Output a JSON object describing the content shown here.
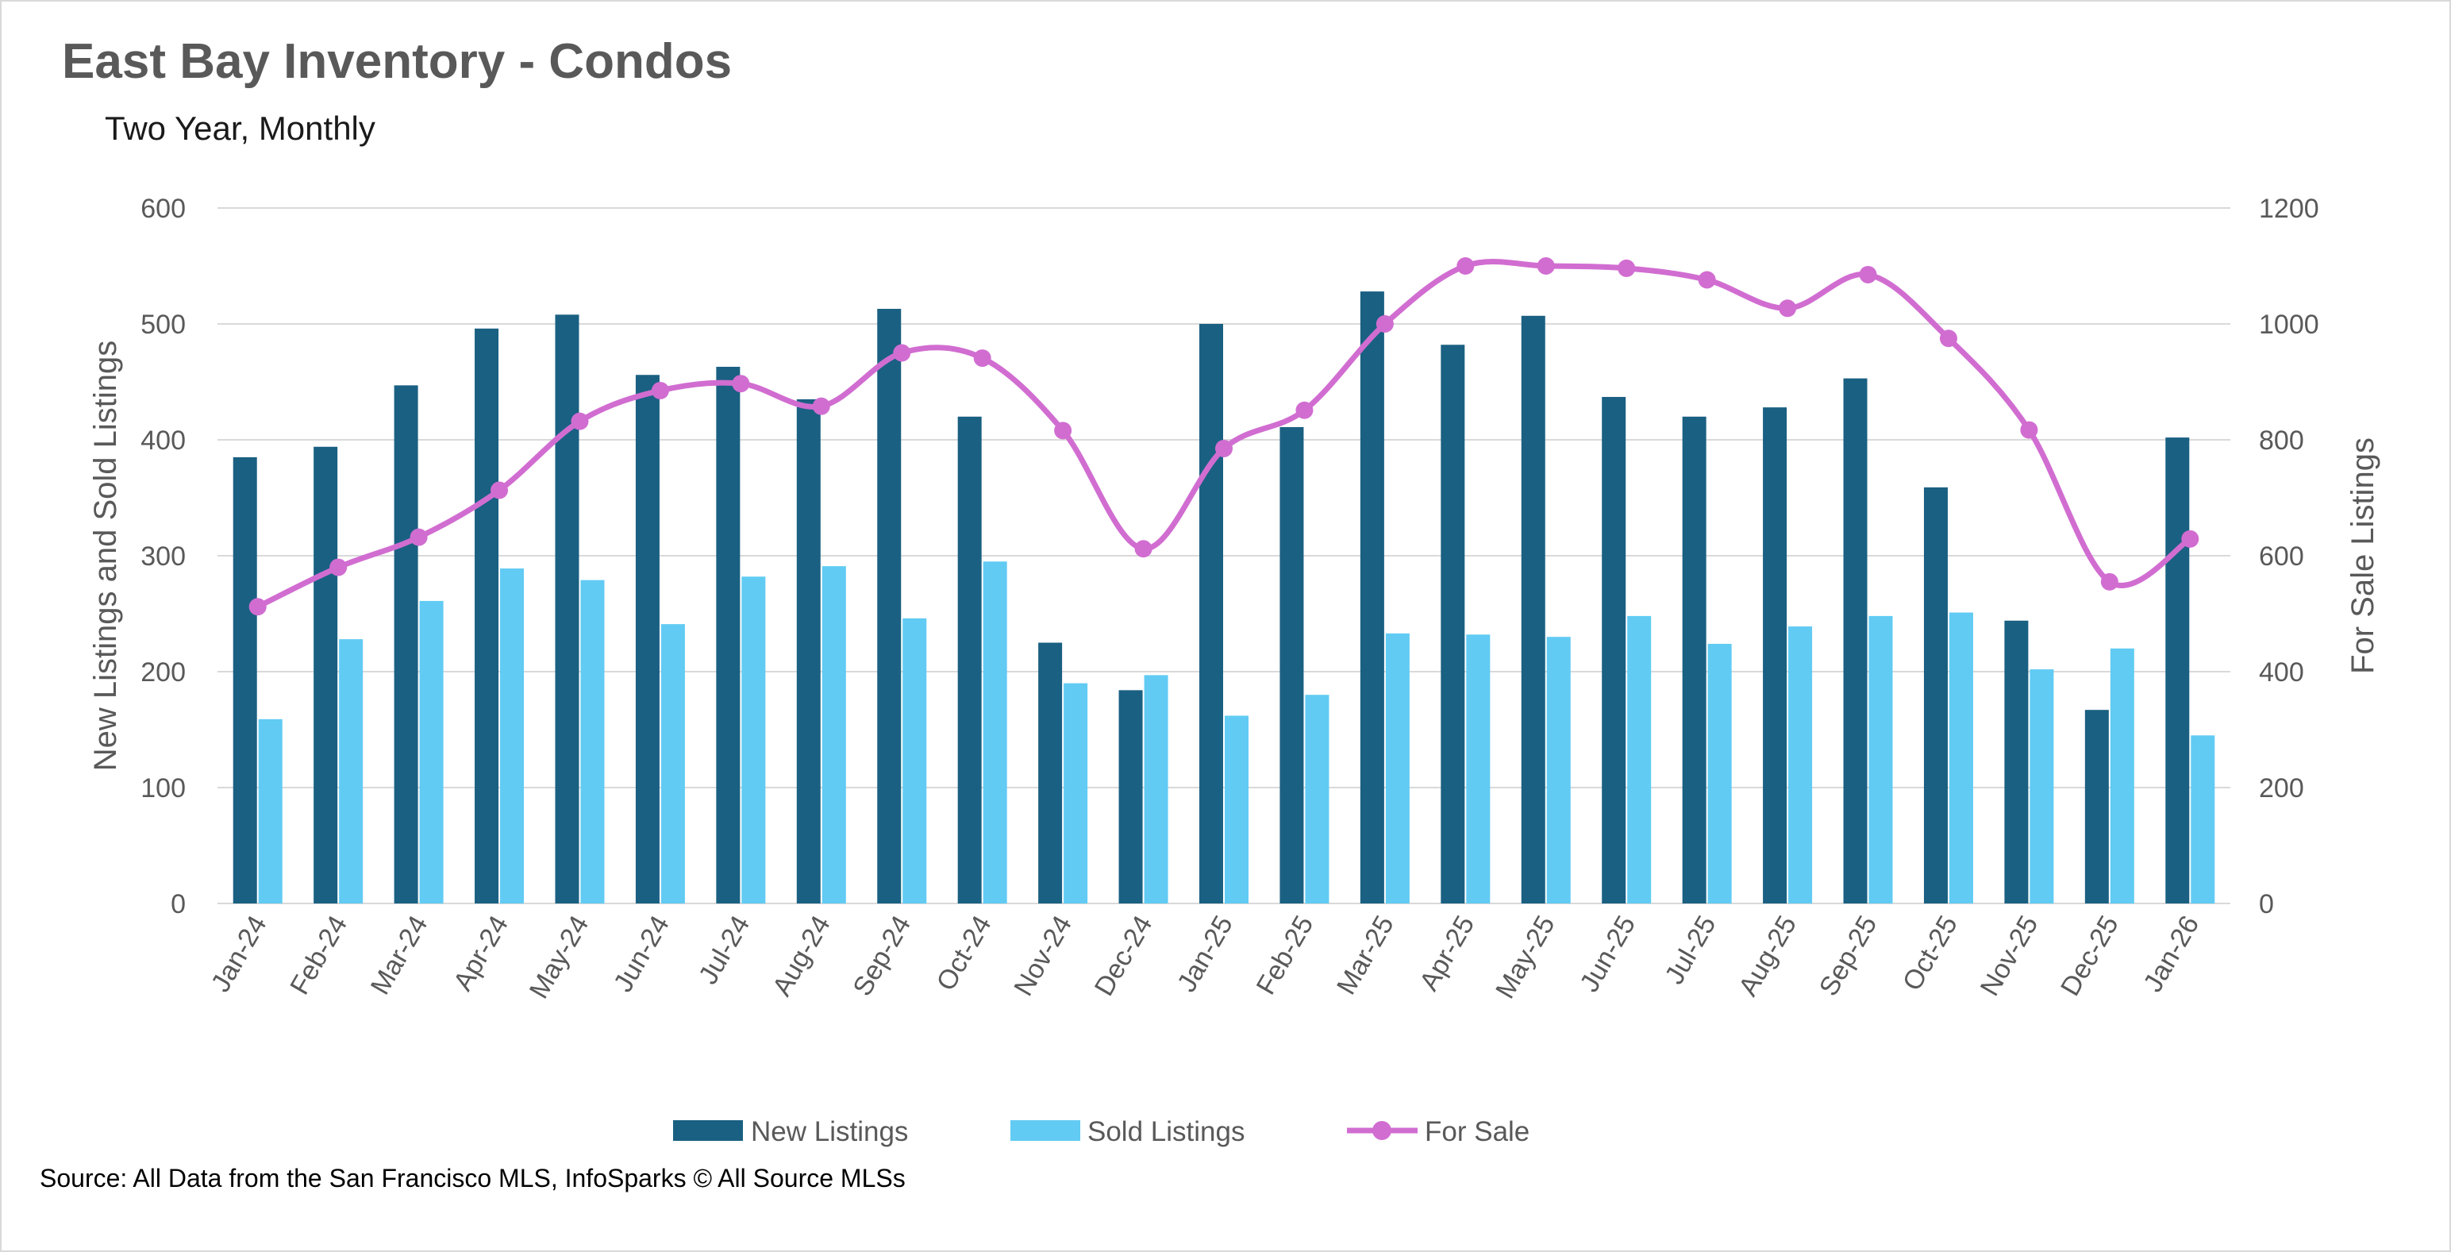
{
  "header": {
    "title": "East Bay Inventory - Condos",
    "subtitle": "Two Year, Monthly"
  },
  "footer": {
    "source": "Source: All Data from the San Francisco MLS, InfoSparks © All Source MLSs"
  },
  "colors": {
    "new_listings": "#1a6082",
    "sold_listings": "#61cbf3",
    "for_sale": "#d16dd1",
    "grid": "#d9d9d9",
    "text": "#595959"
  },
  "chart_data": {
    "type": "bar",
    "title": "East Bay Inventory - Condos",
    "subtitle": "Two Year, Monthly",
    "categories": [
      "Jan-24",
      "Feb-24",
      "Mar-24",
      "Apr-24",
      "May-24",
      "Jun-24",
      "Jul-24",
      "Aug-24",
      "Sep-24",
      "Oct-24",
      "Nov-24",
      "Dec-24",
      "Jan-25",
      "Feb-25",
      "Mar-25",
      "Apr-25",
      "May-25",
      "Jun-25",
      "Jul-25",
      "Aug-25",
      "Sep-25",
      "Oct-25",
      "Nov-25",
      "Dec-25",
      "Jan-26"
    ],
    "ylabel": "New Listings and Sold Listings",
    "ylim": [
      0,
      600
    ],
    "yticks": [
      0,
      100,
      200,
      300,
      400,
      500,
      600
    ],
    "y2label": "For Sale Listings",
    "y2lim": [
      0,
      1200
    ],
    "y2ticks": [
      0,
      200,
      400,
      600,
      800,
      1000,
      1200
    ],
    "grid": true,
    "legend_position": "bottom",
    "series": [
      {
        "name": "New Listings",
        "type": "bar",
        "axis": "left",
        "values": [
          385,
          394,
          447,
          496,
          508,
          456,
          463,
          435,
          513,
          420,
          225,
          184,
          500,
          411,
          528,
          482,
          507,
          437,
          420,
          428,
          453,
          359,
          244,
          167,
          402
        ]
      },
      {
        "name": "Sold Listings",
        "type": "bar",
        "axis": "left",
        "values": [
          159,
          228,
          261,
          289,
          279,
          241,
          282,
          291,
          246,
          295,
          190,
          197,
          162,
          180,
          233,
          232,
          230,
          248,
          224,
          239,
          248,
          251,
          202,
          220,
          145
        ]
      },
      {
        "name": "For Sale",
        "type": "line",
        "axis": "right",
        "values": [
          512,
          580,
          632,
          713,
          832,
          885,
          897,
          858,
          950,
          941,
          816,
          612,
          785,
          851,
          1000,
          1100,
          1100,
          1096,
          1076,
          1027,
          1085,
          975,
          817,
          555,
          629
        ]
      }
    ]
  }
}
